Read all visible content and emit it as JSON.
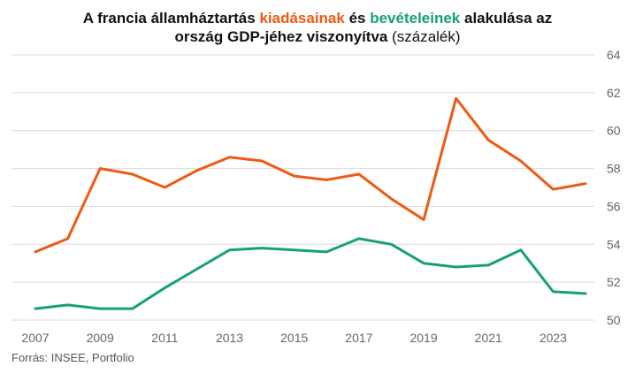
{
  "title": {
    "part1": "A francia államháztartás ",
    "highlight_expenditure": "kiadásainak",
    "part2": " és ",
    "highlight_revenue": "bevételeinek",
    "part3": " alakulása az",
    "line2": "ország GDP-jéhez viszonyítva",
    "unit": " (százalék)"
  },
  "source": "Forrás: INSEE, Portfolio",
  "colors": {
    "expenditure": "#ee5a14",
    "revenue": "#16a07a",
    "grid": "#d9d9d9"
  },
  "chart_data": {
    "type": "line",
    "x": [
      2007,
      2008,
      2009,
      2010,
      2011,
      2012,
      2013,
      2014,
      2015,
      2016,
      2017,
      2018,
      2019,
      2020,
      2021,
      2022,
      2023,
      2024
    ],
    "series": [
      {
        "key": "expenditure",
        "color": "#ee5a14",
        "values": [
          53.6,
          54.3,
          58.0,
          57.7,
          57.0,
          57.9,
          58.6,
          58.4,
          57.6,
          57.4,
          57.7,
          56.4,
          55.3,
          61.7,
          59.5,
          58.4,
          56.9,
          57.2
        ]
      },
      {
        "key": "revenue",
        "color": "#16a07a",
        "values": [
          50.6,
          50.8,
          50.6,
          50.6,
          51.7,
          52.7,
          53.7,
          53.8,
          53.7,
          53.6,
          54.3,
          54.0,
          53.0,
          52.8,
          52.9,
          53.7,
          51.5,
          51.4
        ]
      }
    ],
    "xticks": [
      "2007",
      "2009",
      "2011",
      "2013",
      "2015",
      "2017",
      "2019",
      "2021",
      "2023"
    ],
    "yticks": [
      "50",
      "52",
      "54",
      "56",
      "58",
      "60",
      "62",
      "64"
    ],
    "xlim": [
      2007,
      2024
    ],
    "ylim": [
      50,
      64
    ],
    "y_axis_position": "right",
    "grid": true
  }
}
